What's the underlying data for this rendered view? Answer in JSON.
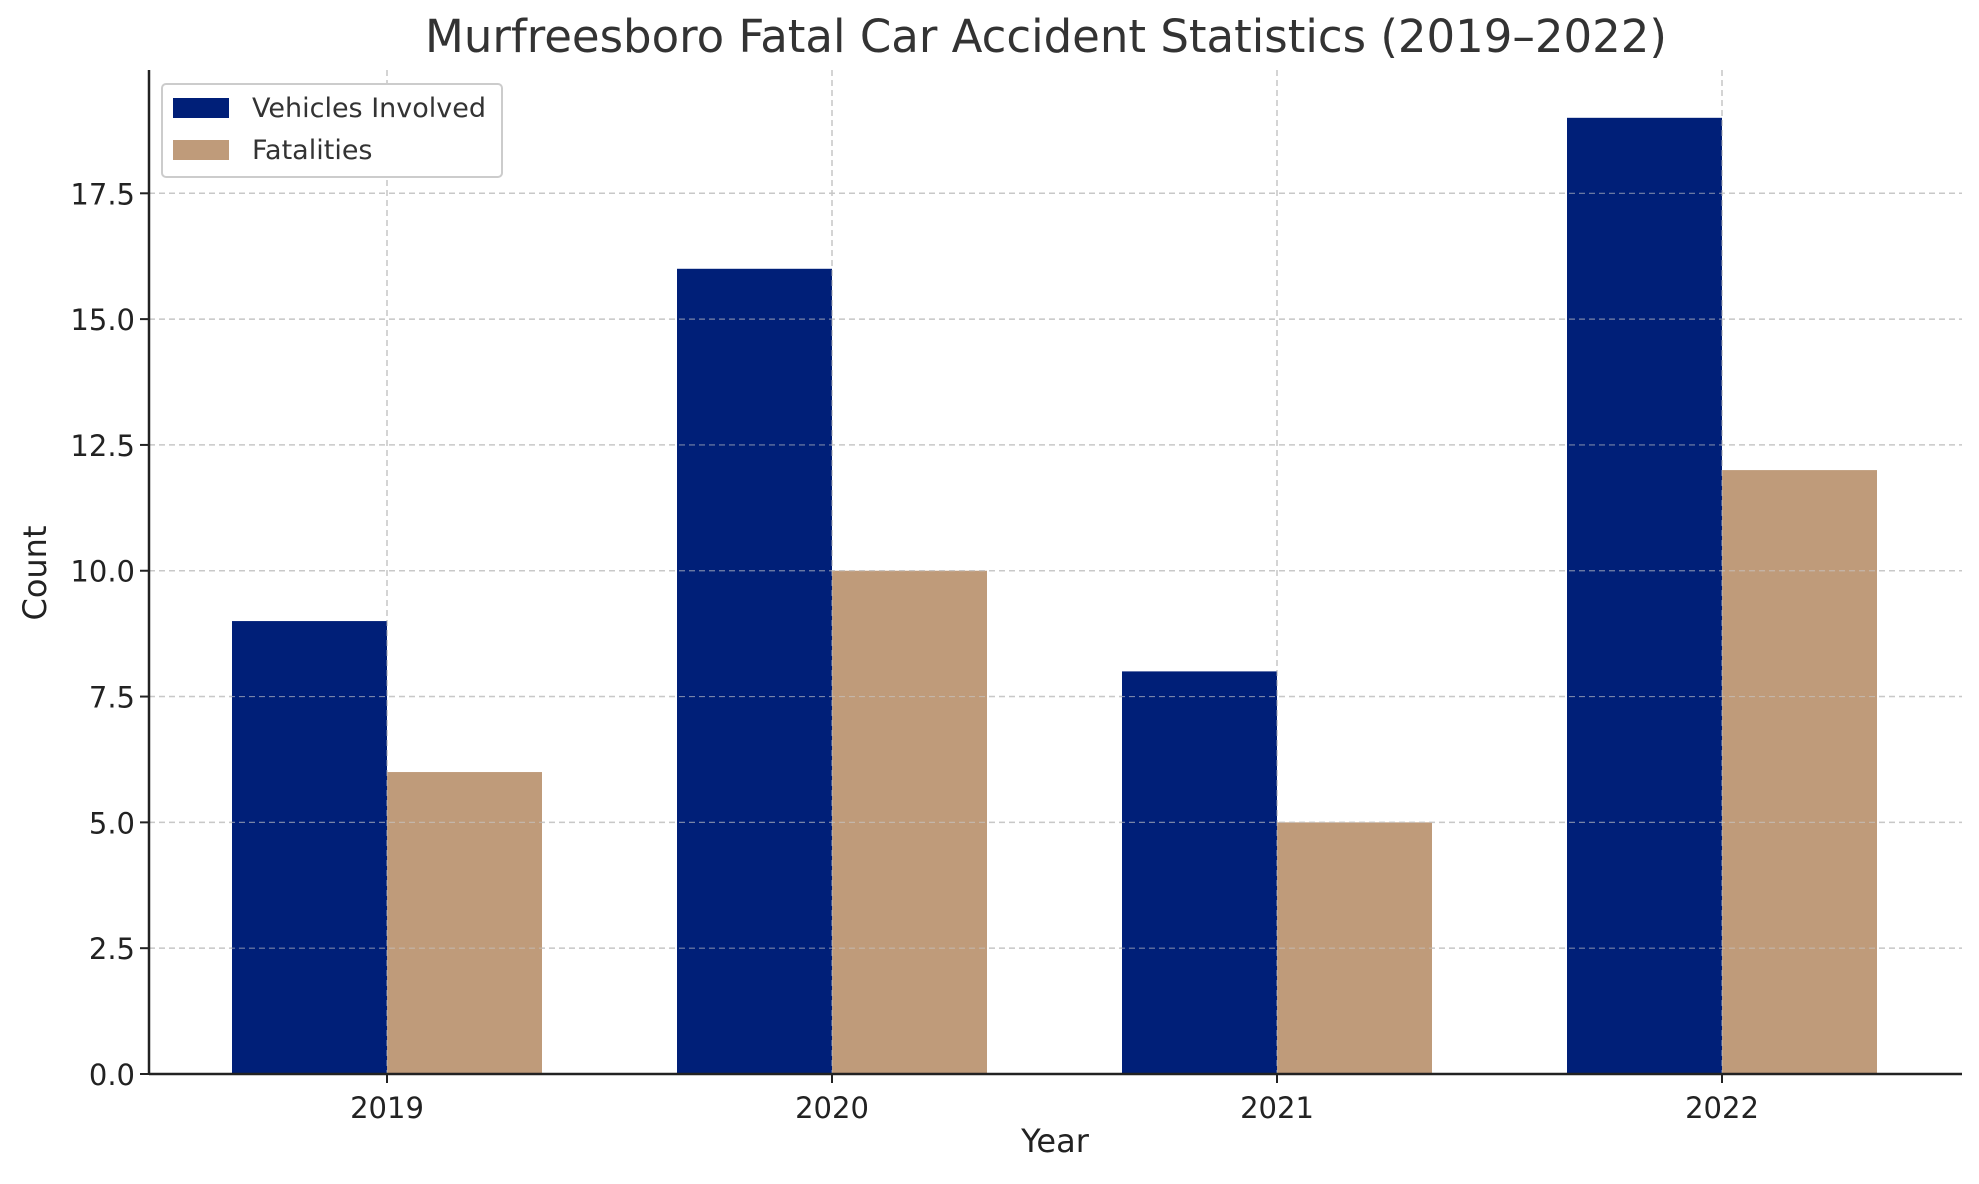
{
  "chart_data": {
    "type": "bar",
    "title": "Murfreesboro Fatal Car Accident Statistics (2019–2022)",
    "xlabel": "Year",
    "ylabel": "Count",
    "categories": [
      "2019",
      "2020",
      "2021",
      "2022"
    ],
    "series": [
      {
        "name": "Vehicles Involved",
        "values": [
          9,
          16,
          8,
          19
        ],
        "color": "#001f78"
      },
      {
        "name": "Fatalities",
        "values": [
          6,
          10,
          5,
          12
        ],
        "color": "#bf9b7a"
      }
    ],
    "ylim": [
      0,
      19.95
    ],
    "yticks": [
      "0.0",
      "2.5",
      "5.0",
      "7.5",
      "10.0",
      "12.5",
      "15.0",
      "17.5"
    ],
    "grid": true,
    "legend_position": "top-left"
  }
}
